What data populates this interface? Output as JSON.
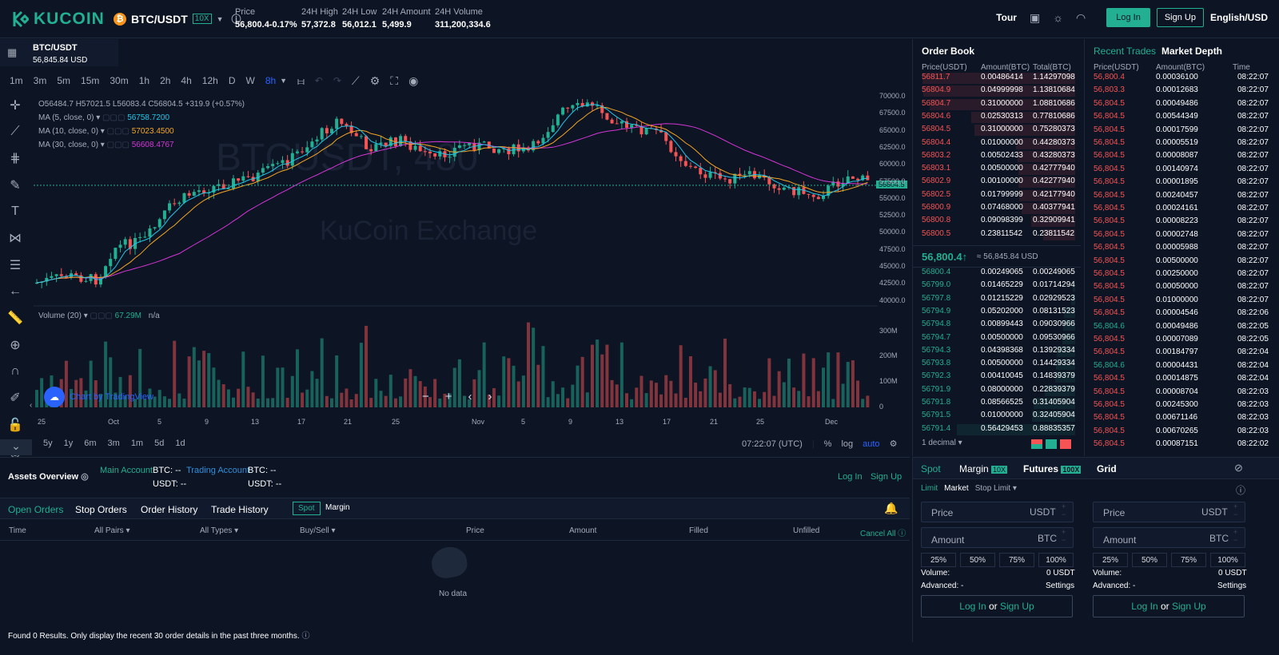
{
  "header": {
    "logo": "KUCOIN",
    "pair": "BTC/USDT",
    "leverage": "10X",
    "stats": [
      {
        "label": "Price",
        "value": "56,800.4-0.17%"
      },
      {
        "label": "24H High",
        "value": "57,372.8"
      },
      {
        "label": "24H Low",
        "value": "56,012.1"
      },
      {
        "label": "24H Amount",
        "value": "5,499.9"
      },
      {
        "label": "24H Volume",
        "value": "311,200,334.6"
      }
    ],
    "tour": "Tour",
    "login": "Log In",
    "signup": "Sign Up",
    "lang": "English/USD"
  },
  "chart": {
    "symbol": "BTC/USDT",
    "symbol_price": "56,845.84 USD",
    "intervals": [
      "1m",
      "3m",
      "5m",
      "15m",
      "30m",
      "1h",
      "2h",
      "4h",
      "12h",
      "D",
      "W",
      "8h"
    ],
    "ohlc": "O56484.7 H57021.5 L56083.4 C56804.5 +319.9 (+0.57%)",
    "ma5": "MA (5, close, 0)",
    "ma5_val": "56758.7200",
    "ma10": "MA (10, close, 0)",
    "ma10_val": "57023.4500",
    "ma30": "MA (30, close, 0)",
    "ma30_val": "56608.4767",
    "volume_label": "Volume (20)",
    "volume_val": "67.29M",
    "volume_na": "n/a",
    "watermark1": "BTCUSDT, 480",
    "watermark2": "KuCoin Exchange",
    "yaxis": [
      "70000.0",
      "67500.0",
      "65000.0",
      "62500.0",
      "60000.0",
      "57500.0",
      "55000.0",
      "52500.0",
      "50000.0",
      "47500.0",
      "45000.0",
      "42500.0",
      "40000.0"
    ],
    "price_tag": "56804.5",
    "vol_axis": [
      "300M",
      "200M",
      "100M",
      "0"
    ],
    "xaxis": [
      "25",
      "Oct",
      "5",
      "9",
      "13",
      "17",
      "21",
      "25",
      "Nov",
      "5",
      "9",
      "13",
      "17",
      "21",
      "25",
      "Dec"
    ],
    "ranges": [
      "5y",
      "1y",
      "6m",
      "3m",
      "1m",
      "5d",
      "1d"
    ],
    "clock": "07:22:07 (UTC)",
    "pct": "%",
    "log": "log",
    "auto": "auto",
    "tv": "Chart by TradingView"
  },
  "orderbook": {
    "title": "Order Book",
    "cols": [
      "Price(USDT)",
      "Amount(BTC)",
      "Total(BTC)"
    ],
    "asks": [
      [
        "56811.7",
        "0.00486414",
        "1.14297098"
      ],
      [
        "56804.9",
        "0.04999998",
        "1.13810684"
      ],
      [
        "56804.7",
        "0.31000000",
        "1.08810686"
      ],
      [
        "56804.6",
        "0.02530313",
        "0.77810686"
      ],
      [
        "56804.5",
        "0.31000000",
        "0.75280373"
      ],
      [
        "56804.4",
        "0.01000000",
        "0.44280373"
      ],
      [
        "56803.2",
        "0.00502433",
        "0.43280373"
      ],
      [
        "56803.1",
        "0.00500000",
        "0.42777940"
      ],
      [
        "56802.9",
        "0.00100000",
        "0.42277940"
      ],
      [
        "56802.5",
        "0.01799999",
        "0.42177940"
      ],
      [
        "56800.9",
        "0.07468000",
        "0.40377941"
      ],
      [
        "56800.8",
        "0.09098399",
        "0.32909941"
      ],
      [
        "56800.5",
        "0.23811542",
        "0.23811542"
      ]
    ],
    "last": "56,800.4↑",
    "last_usd": "≈ 56,845.84 USD",
    "bids": [
      [
        "56800.4",
        "0.00249065",
        "0.00249065"
      ],
      [
        "56799.0",
        "0.01465229",
        "0.01714294"
      ],
      [
        "56797.8",
        "0.01215229",
        "0.02929523"
      ],
      [
        "56794.9",
        "0.05202000",
        "0.08131523"
      ],
      [
        "56794.8",
        "0.00899443",
        "0.09030966"
      ],
      [
        "56794.7",
        "0.00500000",
        "0.09530966"
      ],
      [
        "56794.3",
        "0.04398368",
        "0.13929334"
      ],
      [
        "56793.8",
        "0.00500000",
        "0.14429334"
      ],
      [
        "56792.3",
        "0.00410045",
        "0.14839379"
      ],
      [
        "56791.9",
        "0.08000000",
        "0.22839379"
      ],
      [
        "56791.8",
        "0.08566525",
        "0.31405904"
      ],
      [
        "56791.5",
        "0.01000000",
        "0.32405904"
      ],
      [
        "56791.4",
        "0.56429453",
        "0.88835357"
      ]
    ],
    "decimal": "1 decimal"
  },
  "trades": {
    "tab1": "Recent Trades",
    "tab2": "Market Depth",
    "cols": [
      "Price(USDT)",
      "Amount(BTC)",
      "Time"
    ],
    "rows": [
      [
        "56,800.4",
        "0.00036100",
        "08:22:07",
        "r"
      ],
      [
        "56,803.3",
        "0.00012683",
        "08:22:07",
        "r"
      ],
      [
        "56,804.5",
        "0.00049486",
        "08:22:07",
        "r"
      ],
      [
        "56,804.5",
        "0.00544349",
        "08:22:07",
        "r"
      ],
      [
        "56,804.5",
        "0.00017599",
        "08:22:07",
        "r"
      ],
      [
        "56,804.5",
        "0.00005519",
        "08:22:07",
        "r"
      ],
      [
        "56,804.5",
        "0.00008087",
        "08:22:07",
        "r"
      ],
      [
        "56,804.5",
        "0.00140974",
        "08:22:07",
        "r"
      ],
      [
        "56,804.5",
        "0.00001895",
        "08:22:07",
        "r"
      ],
      [
        "56,804.5",
        "0.00240457",
        "08:22:07",
        "r"
      ],
      [
        "56,804.5",
        "0.00024161",
        "08:22:07",
        "r"
      ],
      [
        "56,804.5",
        "0.00008223",
        "08:22:07",
        "r"
      ],
      [
        "56,804.5",
        "0.00002748",
        "08:22:07",
        "r"
      ],
      [
        "56,804.5",
        "0.00005988",
        "08:22:07",
        "r"
      ],
      [
        "56,804.5",
        "0.00500000",
        "08:22:07",
        "r"
      ],
      [
        "56,804.5",
        "0.00250000",
        "08:22:07",
        "r"
      ],
      [
        "56,804.5",
        "0.00050000",
        "08:22:07",
        "r"
      ],
      [
        "56,804.5",
        "0.01000000",
        "08:22:07",
        "r"
      ],
      [
        "56,804.5",
        "0.00004546",
        "08:22:06",
        "r"
      ],
      [
        "56,804.6",
        "0.00049486",
        "08:22:05",
        "g"
      ],
      [
        "56,804.5",
        "0.00007089",
        "08:22:05",
        "r"
      ],
      [
        "56,804.5",
        "0.00184797",
        "08:22:04",
        "r"
      ],
      [
        "56,804.6",
        "0.00004431",
        "08:22:04",
        "g"
      ],
      [
        "56,804.5",
        "0.00014875",
        "08:22:04",
        "r"
      ],
      [
        "56,804.5",
        "0.00008704",
        "08:22:03",
        "r"
      ],
      [
        "56,804.5",
        "0.00245300",
        "08:22:03",
        "r"
      ],
      [
        "56,804.5",
        "0.00671146",
        "08:22:03",
        "r"
      ],
      [
        "56,804.5",
        "0.00670265",
        "08:22:03",
        "r"
      ],
      [
        "56,804.5",
        "0.00087151",
        "08:22:02",
        "r"
      ]
    ]
  },
  "assets": {
    "title": "Assets Overview",
    "main": "Main Account",
    "trading": "Trading Account",
    "btc": "BTC: --",
    "usdt": "USDT: --",
    "login": "Log In",
    "signup": "Sign Up"
  },
  "orders": {
    "tabs": [
      "Open Orders",
      "Stop Orders",
      "Order History",
      "Trade History"
    ],
    "spot": "Spot",
    "margin": "Margin",
    "cols": [
      "Time",
      "All Pairs",
      "All Types",
      "Buy/Sell",
      "Price",
      "Amount",
      "Filled",
      "Unfilled",
      "Cancel All"
    ],
    "nodata": "No data",
    "footer": "Found 0 Results. Only display the recent 30 order details in the past three months."
  },
  "form": {
    "tabs": [
      "Spot",
      "Margin",
      "Futures",
      "Grid"
    ],
    "margin_lev": "10X",
    "fut_lev": "100X",
    "types": [
      "Limit",
      "Market",
      "Stop Limit"
    ],
    "price": "Price",
    "amount": "Amount",
    "usdt": "USDT",
    "btc": "BTC",
    "pcts": [
      "25%",
      "50%",
      "75%",
      "100%"
    ],
    "volume": "Volume:",
    "volume_val": "0 USDT",
    "advanced": "Advanced: -",
    "settings": "Settings",
    "login": "Log In",
    "or": "or",
    "signup": "Sign Up"
  }
}
